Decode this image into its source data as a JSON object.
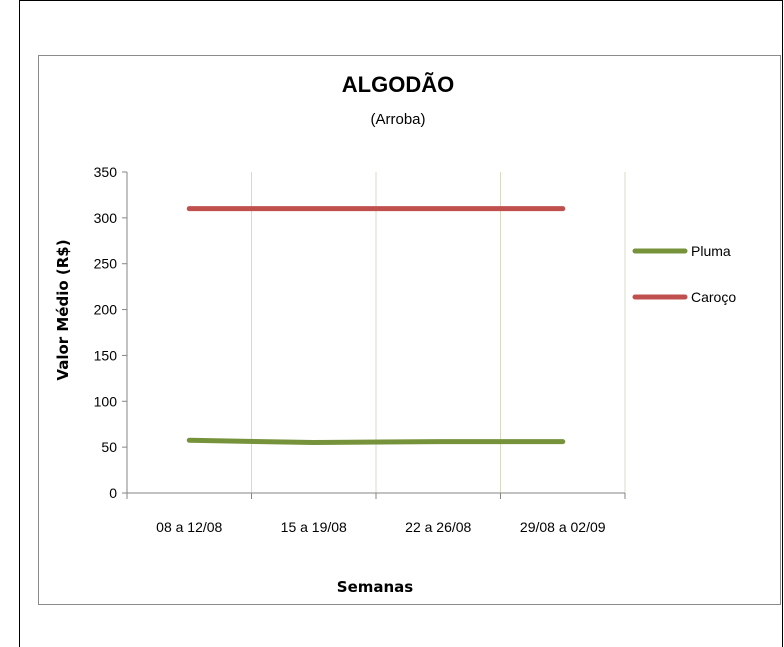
{
  "chart_data": {
    "type": "line",
    "title": "ALGODÃO",
    "subtitle": "(Arroba)",
    "xlabel": "Semanas",
    "ylabel": "Valor Médio (R$)",
    "categories": [
      "08 a 12/08",
      "15 a 19/08",
      "22 a 26/08",
      "29/08 a 02/09"
    ],
    "ylim": [
      0,
      350
    ],
    "yticks": [
      0,
      50,
      100,
      150,
      200,
      250,
      300,
      350
    ],
    "grid": "vertical",
    "legend": "right",
    "series": [
      {
        "name": "Pluma",
        "color": "#76933c",
        "values": [
          57.5,
          55,
          56,
          56
        ]
      },
      {
        "name": "Caroço",
        "color": "#c0504d",
        "values": [
          310,
          310,
          310,
          310
        ]
      }
    ]
  }
}
